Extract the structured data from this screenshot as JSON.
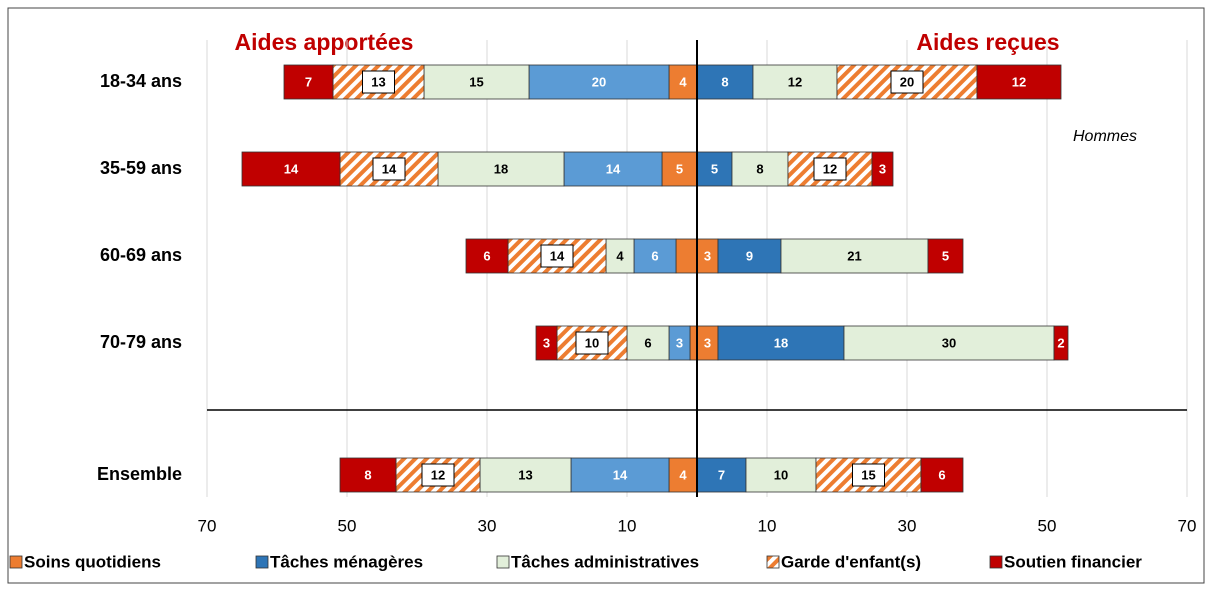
{
  "chart_data": {
    "type": "diverging-bar",
    "title_left": "Aides apportées",
    "title_right": "Aides reçues",
    "annotation": "Hommes",
    "categories": [
      "18-34 ans",
      "35-59 ans",
      "60-69 ans",
      "70-79 ans",
      "Ensemble"
    ],
    "xlim": [
      -70,
      70
    ],
    "xticks": [
      {
        "value": -70,
        "label": "70"
      },
      {
        "value": -50,
        "label": "50"
      },
      {
        "value": -30,
        "label": "30"
      },
      {
        "value": -10,
        "label": "10"
      },
      10,
      30,
      50,
      70
    ],
    "grid": true,
    "series": [
      {
        "name": "Soins quotidiens",
        "color": "#ed7d31",
        "given": [
          4,
          5,
          3,
          1,
          4
        ],
        "given_labels": [
          "4",
          "5",
          null,
          null,
          "4"
        ],
        "received": [
          null,
          null,
          3,
          3,
          null
        ]
      },
      {
        "name": "Tâches ménagères",
        "color": "#2e75b6",
        "given_color": "#5b9bd5",
        "given": [
          20,
          14,
          6,
          3,
          14
        ],
        "received": [
          8,
          5,
          9,
          18,
          7
        ]
      },
      {
        "name": "Tâches administratives",
        "color": "#e2efda",
        "given": [
          15,
          18,
          4,
          6,
          13
        ],
        "received": [
          12,
          8,
          21,
          30,
          10
        ]
      },
      {
        "name": "Garde d'enfant(s)",
        "color": "#ed7d31",
        "hatch": true,
        "given": [
          13,
          14,
          14,
          10,
          12
        ],
        "received": [
          20,
          12,
          null,
          null,
          15
        ]
      },
      {
        "name": "Soutien financier",
        "color": "#c00000",
        "given": [
          7,
          14,
          6,
          3,
          8
        ],
        "received": [
          12,
          3,
          5,
          2,
          6
        ]
      }
    ]
  }
}
